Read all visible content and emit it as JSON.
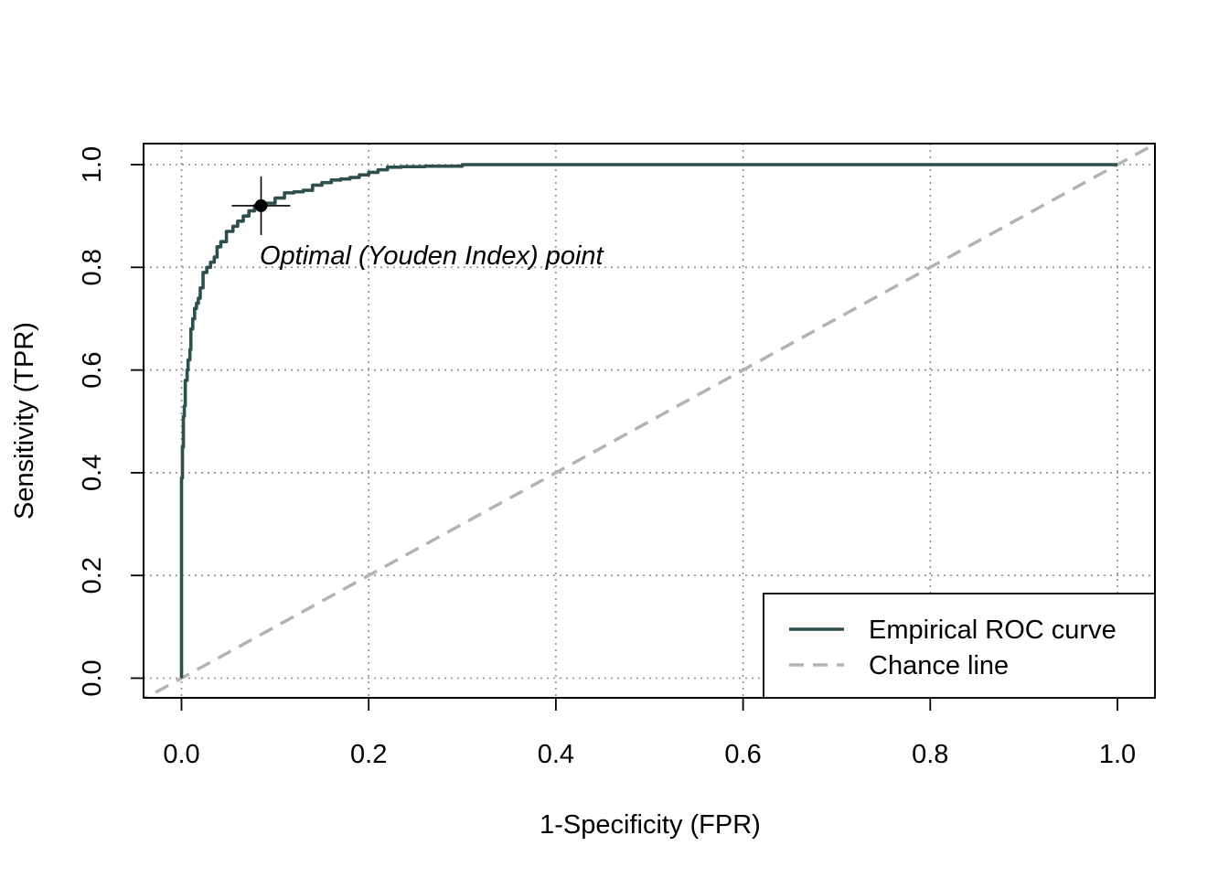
{
  "chart_data": {
    "type": "line",
    "title": "",
    "xlabel": "1-Specificity (FPR)",
    "ylabel": "Sensitivity (TPR)",
    "xlim": [
      0,
      1
    ],
    "ylim": [
      0,
      1
    ],
    "x_ticks": [
      "0.0",
      "0.2",
      "0.4",
      "0.6",
      "0.8",
      "1.0"
    ],
    "y_ticks": [
      "0.0",
      "0.2",
      "0.4",
      "0.6",
      "0.8",
      "1.0"
    ],
    "grid": true,
    "legend_position": "bottom-right",
    "series": [
      {
        "name": "Empirical ROC curve",
        "color": "#2f4f4f",
        "style": "solid",
        "x": [
          0.0,
          0.0,
          0.001,
          0.002,
          0.003,
          0.004,
          0.004,
          0.006,
          0.007,
          0.009,
          0.01,
          0.012,
          0.014,
          0.016,
          0.018,
          0.02,
          0.023,
          0.027,
          0.031,
          0.035,
          0.038,
          0.042,
          0.048,
          0.055,
          0.06,
          0.066,
          0.072,
          0.078,
          0.084,
          0.09,
          0.1,
          0.11,
          0.12,
          0.13,
          0.14,
          0.15,
          0.16,
          0.17,
          0.18,
          0.19,
          0.2,
          0.21,
          0.22,
          0.235,
          0.26,
          0.3,
          0.33,
          0.4,
          0.6,
          0.8,
          1.0
        ],
        "y": [
          0.0,
          0.3,
          0.39,
          0.45,
          0.51,
          0.53,
          0.55,
          0.58,
          0.6,
          0.62,
          0.64,
          0.68,
          0.7,
          0.72,
          0.73,
          0.74,
          0.76,
          0.79,
          0.8,
          0.81,
          0.82,
          0.84,
          0.85,
          0.87,
          0.88,
          0.89,
          0.9,
          0.91,
          0.92,
          0.925,
          0.925,
          0.935,
          0.945,
          0.947,
          0.95,
          0.96,
          0.965,
          0.97,
          0.972,
          0.975,
          0.98,
          0.985,
          0.99,
          0.995,
          0.996,
          0.997,
          1.0,
          1.0,
          1.0,
          1.0,
          1.0
        ]
      },
      {
        "name": "Chance line",
        "color": "#b3b3b3",
        "style": "dashed",
        "x": [
          0.0,
          1.0
        ],
        "y": [
          0.0,
          1.0
        ]
      }
    ],
    "optimal_point": {
      "x": 0.085,
      "y": 0.92,
      "label": "Optimal (Youden Index) point"
    }
  }
}
